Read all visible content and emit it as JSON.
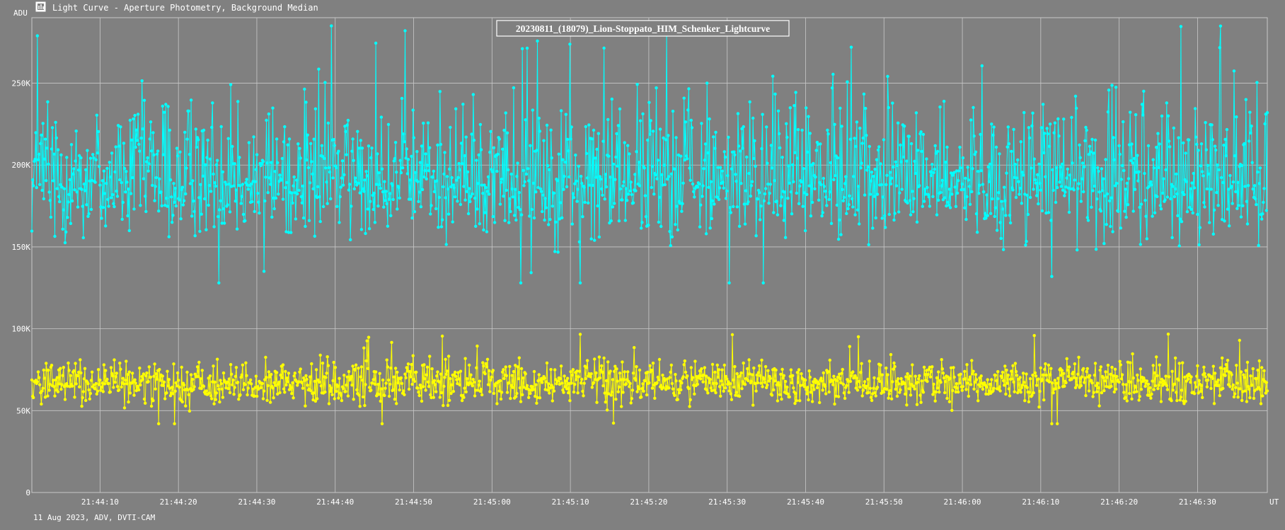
{
  "header": {
    "window_title": "Light Curve - Aperture Photometry, Background Median",
    "app_icon": "light-curve-icon"
  },
  "chart_data": {
    "type": "line",
    "title": "20230811_(18079)_Lion-Stoppato_HIM_Schenker_Lightcurve",
    "ylabel": "ADU",
    "xlabel": "UT",
    "footer": "11 Aug 2023, ADV, DVTI-CAM",
    "x_range": [
      "21:44:01.3",
      "21:46:38.9"
    ],
    "ylim": [
      0,
      290000
    ],
    "y_ticks": [
      {
        "value": 0,
        "label": "0"
      },
      {
        "value": 50000,
        "label": "50K"
      },
      {
        "value": 100000,
        "label": "100K"
      },
      {
        "value": 150000,
        "label": "150K"
      },
      {
        "value": 200000,
        "label": "200K"
      },
      {
        "value": 250000,
        "label": "250K"
      }
    ],
    "x_ticks": [
      "21:44:10",
      "21:44:20",
      "21:44:30",
      "21:44:40",
      "21:44:50",
      "21:45:00",
      "21:45:10",
      "21:45:20",
      "21:45:30",
      "21:45:40",
      "21:45:50",
      "21:46:00",
      "21:46:10",
      "21:46:20",
      "21:46:30"
    ],
    "grid": true,
    "legend": "none",
    "series": [
      {
        "color": "#00ffff",
        "mean": 190000,
        "spread_low": 145000,
        "spread_high": 260000,
        "min": 128000,
        "max": 285000
      },
      {
        "color": "#ffff00",
        "mean": 67000,
        "spread_low": 50000,
        "spread_high": 85000,
        "min": 42000,
        "max": 97000
      }
    ]
  },
  "colors": {
    "background": "#808080",
    "grid": "#c8c8c8",
    "text": "#ffffff",
    "title_box": "#808080"
  }
}
